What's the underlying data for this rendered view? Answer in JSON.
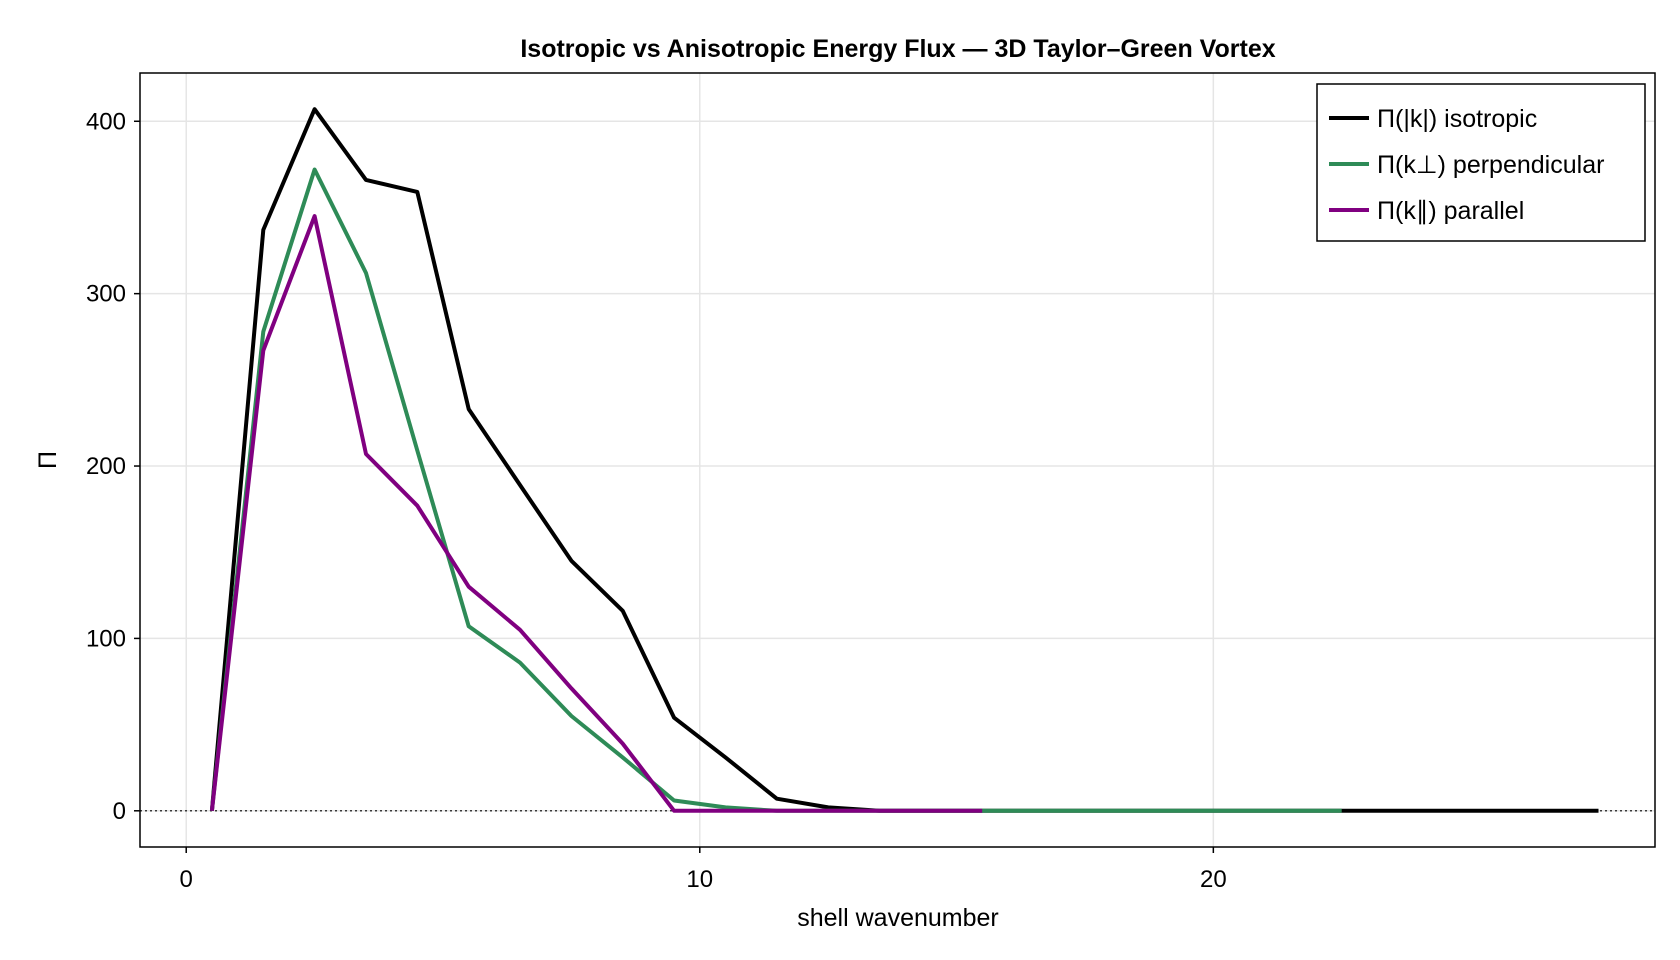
{
  "chart_data": {
    "type": "line",
    "title": "Isotropic vs Anisotropic Energy Flux — 3D Taylor–Green Vortex",
    "xlabel": "shell wavenumber",
    "ylabel": "Π",
    "xlim": [
      -0.9,
      28.6
    ],
    "ylim": [
      -21,
      428
    ],
    "xticks": [
      0,
      10,
      20
    ],
    "yticks": [
      0,
      100,
      200,
      300,
      400
    ],
    "grid": true,
    "zero_line": "dotted",
    "legend_position": "top-right",
    "series": [
      {
        "name": "Π(|k|) isotropic",
        "color": "#000000",
        "x": [
          0.5,
          1.5,
          2.5,
          3.5,
          4.5,
          5.5,
          6.5,
          7.5,
          8.5,
          9.5,
          10.5,
          11.5,
          12.5,
          13.5,
          14.5,
          15.5,
          16.5,
          17.5,
          18.5,
          19.5,
          20.5,
          21.5,
          22.5,
          23.5,
          24.5,
          25.5,
          26.5,
          27.5
        ],
        "y": [
          0,
          337,
          407,
          366,
          359,
          233,
          189,
          145,
          116,
          54,
          31,
          7,
          2,
          0,
          0,
          0,
          0,
          0,
          0,
          0,
          0,
          0,
          0,
          0,
          0,
          0,
          0,
          0
        ]
      },
      {
        "name": "Π(k⊥) perpendicular",
        "color": "#2e8b57",
        "x": [
          0.5,
          1.5,
          2.5,
          3.5,
          4.5,
          5.5,
          6.5,
          7.5,
          8.5,
          9.5,
          10.5,
          11.5,
          12.5,
          13.5,
          14.5,
          15.5,
          16.5,
          17.5,
          18.5,
          19.5,
          20.5,
          21.5,
          22.5
        ],
        "y": [
          0,
          278,
          372,
          312,
          209,
          107,
          86,
          55,
          31,
          6,
          2,
          0,
          0,
          0,
          0,
          0,
          0,
          0,
          0,
          0,
          0,
          0,
          0
        ]
      },
      {
        "name": "Π(k∥) parallel",
        "color": "#800080",
        "x": [
          0.5,
          1.5,
          2.5,
          3.5,
          4.5,
          5.5,
          6.5,
          7.5,
          8.5,
          9.5,
          10.5,
          11.5,
          12.5,
          13.5,
          14.5,
          15.5
        ],
        "y": [
          0,
          267,
          345,
          207,
          177,
          130,
          105,
          71,
          39,
          0,
          0,
          0,
          0,
          0,
          0,
          0
        ]
      }
    ]
  }
}
